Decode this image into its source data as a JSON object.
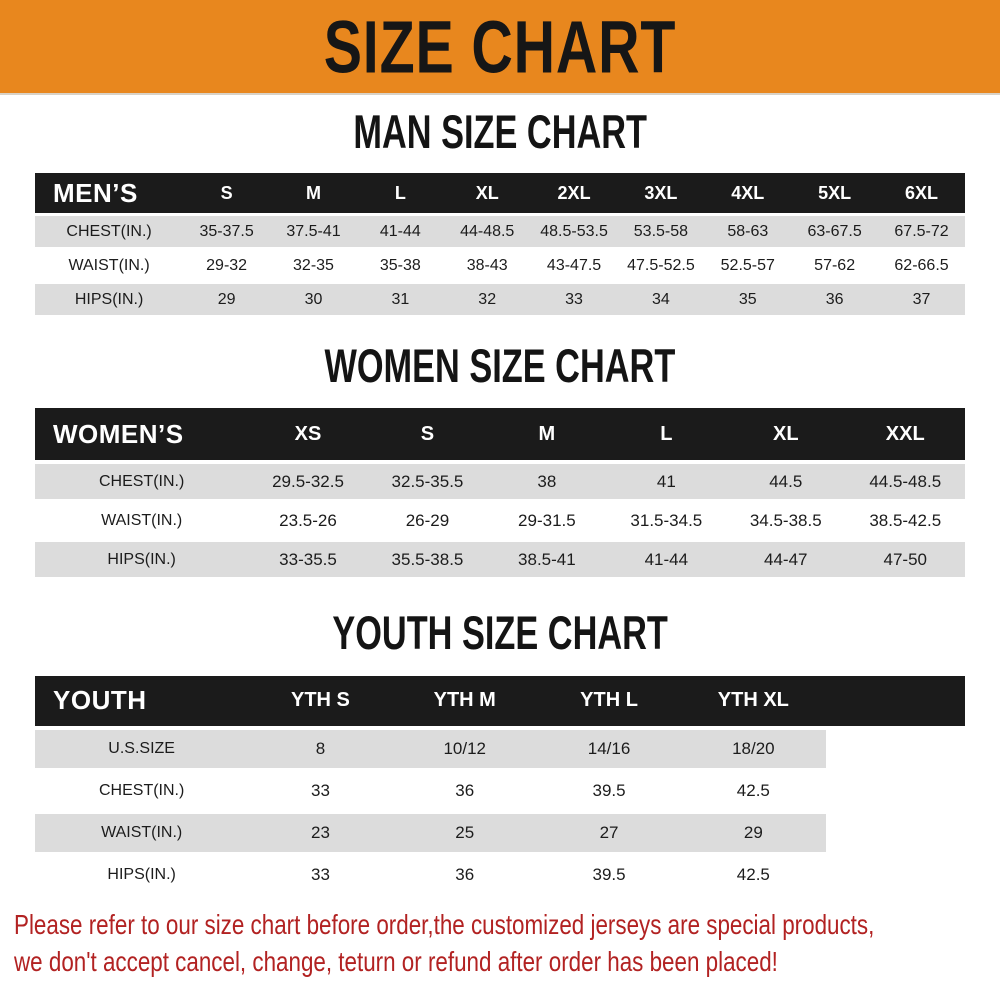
{
  "banner": {
    "title": "SIZE CHART"
  },
  "colors": {
    "banner_bg": "#E8871E",
    "header_bg": "#1B1B1B",
    "row_alt_bg": "#DCDCDC",
    "footer_text": "#B22222"
  },
  "sections": [
    {
      "heading": "MAN SIZE CHART",
      "table": {
        "header_label": "MEN’S",
        "columns": [
          "S",
          "M",
          "L",
          "XL",
          "2XL",
          "3XL",
          "4XL",
          "5XL",
          "6XL"
        ],
        "rows": [
          {
            "label": "CHEST(IN.)",
            "values": [
              "35-37.5",
              "37.5-41",
              "41-44",
              "44-48.5",
              "48.5-53.5",
              "53.5-58",
              "58-63",
              "63-67.5",
              "67.5-72"
            ]
          },
          {
            "label": "WAIST(IN.)",
            "values": [
              "29-32",
              "32-35",
              "35-38",
              "38-43",
              "43-47.5",
              "47.5-52.5",
              "52.5-57",
              "57-62",
              "62-66.5"
            ]
          },
          {
            "label": "HIPS(IN.)",
            "values": [
              "29",
              "30",
              "31",
              "32",
              "33",
              "34",
              "35",
              "36",
              "37"
            ]
          }
        ]
      }
    },
    {
      "heading": "WOMEN SIZE CHART",
      "table": {
        "header_label": "WOMEN’S",
        "columns": [
          "XS",
          "S",
          "M",
          "L",
          "XL",
          "XXL"
        ],
        "rows": [
          {
            "label": "CHEST(IN.)",
            "values": [
              "29.5-32.5",
              "32.5-35.5",
              "38",
              "41",
              "44.5",
              "44.5-48.5"
            ]
          },
          {
            "label": "WAIST(IN.)",
            "values": [
              "23.5-26",
              "26-29",
              "29-31.5",
              "31.5-34.5",
              "34.5-38.5",
              "38.5-42.5"
            ]
          },
          {
            "label": "HIPS(IN.)",
            "values": [
              "33-35.5",
              "35.5-38.5",
              "38.5-41",
              "41-44",
              "44-47",
              "47-50"
            ]
          }
        ]
      }
    },
    {
      "heading": "YOUTH SIZE CHART",
      "table": {
        "header_label": "YOUTH",
        "columns": [
          "YTH S",
          "YTH M",
          "YTH L",
          "YTH XL"
        ],
        "rows": [
          {
            "label": "U.S.SIZE",
            "values": [
              "8",
              "10/12",
              "14/16",
              "18/20"
            ]
          },
          {
            "label": "CHEST(IN.)",
            "values": [
              "33",
              "36",
              "39.5",
              "42.5"
            ]
          },
          {
            "label": "WAIST(IN.)",
            "values": [
              "23",
              "25",
              "27",
              "29"
            ]
          },
          {
            "label": "HIPS(IN.)",
            "values": [
              "33",
              "36",
              "39.5",
              "42.5"
            ]
          }
        ]
      }
    }
  ],
  "footer": {
    "lines": [
      "Please refer to our size chart before order,the customized jerseys are special products,",
      "we don't accept cancel, change, teturn or refund after order has been placed!"
    ]
  }
}
